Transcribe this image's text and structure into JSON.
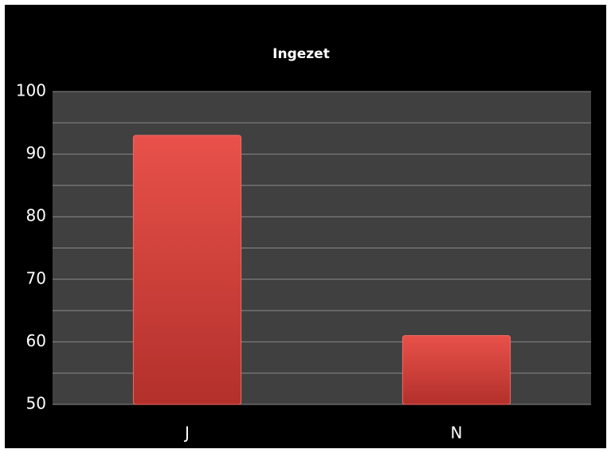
{
  "chart_data": {
    "type": "bar",
    "title": "Ingezet",
    "categories": [
      "J",
      "N"
    ],
    "values": [
      93,
      61
    ],
    "color": "#d9413b",
    "ylim": [
      50,
      100
    ],
    "yticks": [
      50,
      60,
      70,
      80,
      90,
      100
    ],
    "minor_yticks": [
      55,
      65,
      75,
      85,
      95
    ],
    "grid": true
  }
}
